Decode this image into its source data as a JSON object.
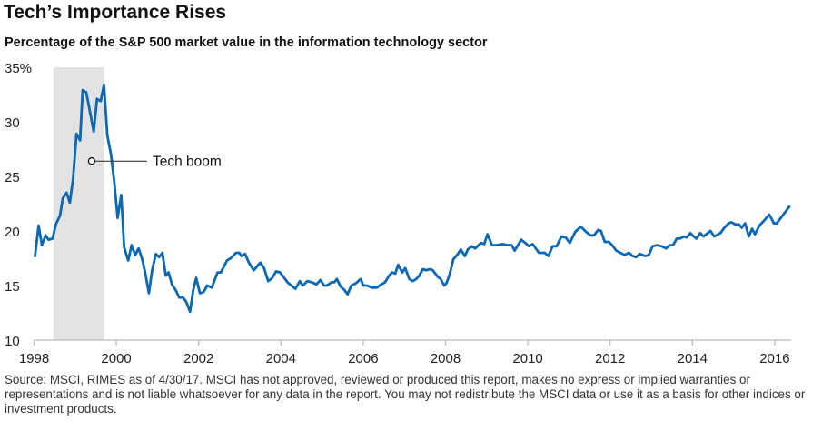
{
  "title": "Tech’s Importance Rises",
  "subtitle": "Percentage of the S&P 500 market value in the information technology sector",
  "source": "Source: MSCI, RIMES as of 4/30/17. MSCI has not approved, reviewed or produced this report, makes no express or implied warranties or representations and is not liable whatsoever for any data in the report. You may not redistribute the MSCI data or use it as a basis for other indices or investment products.",
  "chart_data": {
    "type": "line",
    "title": "Tech’s Importance Rises",
    "subtitle": "Percentage of the S&P 500 market value in the information technology sector",
    "xlim": [
      1998,
      2016.4
    ],
    "ylim": [
      10,
      35
    ],
    "grid": false,
    "line_color": "#0a68b4",
    "shade_color": "#e3e3e3",
    "x_ticks": [
      1998,
      2000,
      2002,
      2004,
      2006,
      2008,
      2010,
      2012,
      2014,
      2016
    ],
    "x_tick_labels": [
      "1998",
      "2000",
      "2002",
      "2004",
      "2006",
      "2008",
      "2010",
      "2012",
      "2014",
      "2016"
    ],
    "y_ticks": [
      10,
      15,
      20,
      25,
      30,
      35
    ],
    "y_tick_labels": [
      "10",
      "15",
      "20",
      "25",
      "30",
      "35%"
    ],
    "shaded_period": {
      "start": 1998.47,
      "end": 1999.7
    },
    "annotation": {
      "text": "Tech boom",
      "x": 1999.4,
      "y": 26.4
    },
    "series": [
      {
        "x": [
          1998.02,
          1998.11,
          1998.19,
          1998.28,
          1998.35,
          1998.45,
          1998.53,
          1998.63,
          1998.7,
          1998.79,
          1998.87,
          1998.95,
          1999.03,
          1999.12,
          1999.18,
          1999.27,
          1999.36,
          1999.45,
          1999.53,
          1999.62,
          1999.7,
          1999.78,
          1999.87,
          1999.95,
          2000.03,
          2000.12,
          2000.19,
          2000.29,
          2000.37,
          2000.46,
          2000.54,
          2000.63,
          2000.7,
          2000.79,
          2000.87,
          2000.96,
          2001.04,
          2001.12,
          2001.2,
          2001.27,
          2001.35,
          2001.44,
          2001.53,
          2001.62,
          2001.7,
          2001.79,
          2001.87,
          2001.94,
          2002.03,
          2002.12,
          2002.21,
          2002.32,
          2002.46,
          2002.54,
          2002.69,
          2002.78,
          2002.91,
          2002.99,
          2003.04,
          2003.13,
          2003.22,
          2003.34,
          2003.5,
          2003.59,
          2003.69,
          2003.79,
          2003.88,
          2003.98,
          2004.16,
          2004.35,
          2004.46,
          2004.53,
          2004.64,
          2004.75,
          2004.86,
          2004.96,
          2005.05,
          2005.12,
          2005.23,
          2005.3,
          2005.36,
          2005.45,
          2005.54,
          2005.62,
          2005.71,
          2005.82,
          2005.94,
          2006.0,
          2006.09,
          2006.22,
          2006.33,
          2006.44,
          2006.53,
          2006.63,
          2006.7,
          2006.78,
          2006.85,
          2006.95,
          2007.02,
          2007.12,
          2007.2,
          2007.29,
          2007.36,
          2007.45,
          2007.53,
          2007.62,
          2007.69,
          2007.81,
          2007.88,
          2007.97,
          2008.02,
          2008.1,
          2008.19,
          2008.28,
          2008.37,
          2008.47,
          2008.54,
          2008.64,
          2008.72,
          2008.86,
          2008.94,
          2009.02,
          2009.13,
          2009.24,
          2009.39,
          2009.5,
          2009.61,
          2009.68,
          2009.84,
          2009.94,
          2010.03,
          2010.12,
          2010.27,
          2010.41,
          2010.5,
          2010.6,
          2010.7,
          2010.82,
          2010.92,
          2011.02,
          2011.15,
          2011.29,
          2011.39,
          2011.52,
          2011.61,
          2011.71,
          2011.78,
          2011.87,
          2011.97,
          2012.05,
          2012.15,
          2012.3,
          2012.35,
          2012.46,
          2012.55,
          2012.63,
          2012.72,
          2012.85,
          2012.94,
          2013.03,
          2013.14,
          2013.25,
          2013.36,
          2013.45,
          2013.53,
          2013.62,
          2013.7,
          2013.79,
          2013.86,
          2013.95,
          2014.03,
          2014.1,
          2014.19,
          2014.27,
          2014.44,
          2014.53,
          2014.68,
          2014.78,
          2014.88,
          2014.95,
          2015.04,
          2015.13,
          2015.2,
          2015.28,
          2015.37,
          2015.45,
          2015.52,
          2015.63,
          2015.73,
          2015.87,
          2015.98,
          2016.05,
          2016.17,
          2016.37
        ],
        "y": [
          17.6,
          20.5,
          18.7,
          19.6,
          19.2,
          19.3,
          20.6,
          21.4,
          23.0,
          23.5,
          22.6,
          24.8,
          28.9,
          28.3,
          32.9,
          32.7,
          30.9,
          29.1,
          32.1,
          31.9,
          33.4,
          28.8,
          27.0,
          24.5,
          21.2,
          23.3,
          18.5,
          17.3,
          18.7,
          17.8,
          18.4,
          17.4,
          16.2,
          14.3,
          16.4,
          17.9,
          17.6,
          18.0,
          15.9,
          16.2,
          15.1,
          14.6,
          13.9,
          13.9,
          13.5,
          12.6,
          14.6,
          15.7,
          14.3,
          14.4,
          15.0,
          14.8,
          16.2,
          16.2,
          17.3,
          17.5,
          18.0,
          18.0,
          17.7,
          17.9,
          17.1,
          16.4,
          17.1,
          16.6,
          15.4,
          15.7,
          16.3,
          16.2,
          15.3,
          14.7,
          15.4,
          15.0,
          15.4,
          15.3,
          15.1,
          15.5,
          15.0,
          15.0,
          15.3,
          15.3,
          15.6,
          14.9,
          14.6,
          14.2,
          15.0,
          15.2,
          15.6,
          15.0,
          15.0,
          14.8,
          14.8,
          15.1,
          15.3,
          15.9,
          16.2,
          16.1,
          16.9,
          16.2,
          16.6,
          15.6,
          15.4,
          15.6,
          15.9,
          16.5,
          16.4,
          16.5,
          16.4,
          15.8,
          15.6,
          15.0,
          15.2,
          16.0,
          17.4,
          17.8,
          18.3,
          17.7,
          18.3,
          18.6,
          18.4,
          18.9,
          18.8,
          19.7,
          18.7,
          18.7,
          18.8,
          18.7,
          18.7,
          18.2,
          19.2,
          18.9,
          18.6,
          18.8,
          18.0,
          18.0,
          17.7,
          18.6,
          18.6,
          19.5,
          19.4,
          18.9,
          19.9,
          20.4,
          20.0,
          19.6,
          19.6,
          20.1,
          20.0,
          19.0,
          19.0,
          18.7,
          18.2,
          17.9,
          17.8,
          18.0,
          17.7,
          17.6,
          17.9,
          17.7,
          17.8,
          18.6,
          18.7,
          18.6,
          18.4,
          18.7,
          18.7,
          19.3,
          19.3,
          19.5,
          19.4,
          19.8,
          19.5,
          19.3,
          19.8,
          19.5,
          20.0,
          19.5,
          19.8,
          20.3,
          20.7,
          20.8,
          20.6,
          20.6,
          20.3,
          20.7,
          19.5,
          20.2,
          19.7,
          20.5,
          20.9,
          21.5,
          20.7,
          20.7,
          21.3,
          22.3
        ]
      }
    ]
  }
}
